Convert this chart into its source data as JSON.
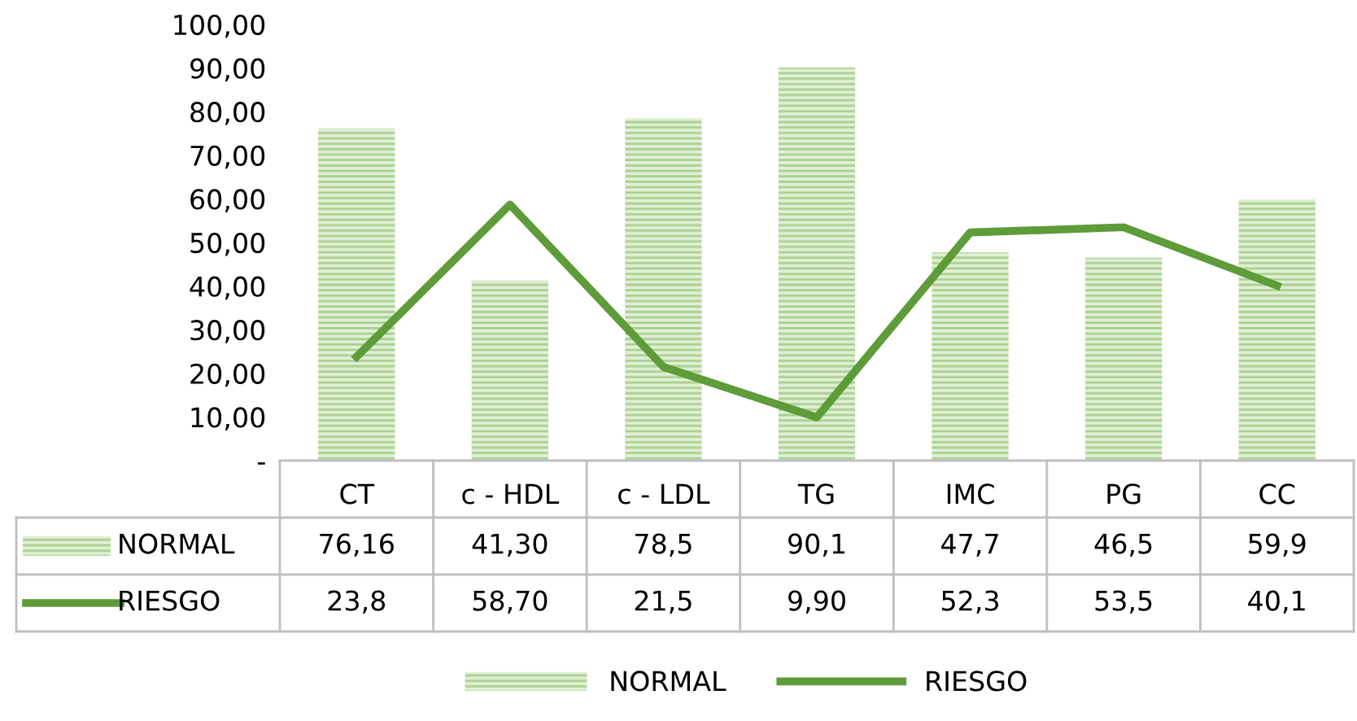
{
  "chart_data": {
    "type": "bar",
    "categories": [
      "CT",
      "c - HDL",
      "c - LDL",
      "TG",
      "IMC",
      "PG",
      "CC"
    ],
    "series": [
      {
        "name": "NORMAL",
        "color": "#a9d18e",
        "values": [
          76.16,
          41.3,
          78.5,
          90.1,
          47.7,
          46.5,
          59.9
        ],
        "value_labels": [
          "76,16",
          "41,30",
          "78,5",
          "90,1",
          "47,7",
          "46,5",
          "59,9"
        ]
      },
      {
        "name": "RIESGO",
        "type": "line",
        "color": "#5e9c3a",
        "values": [
          23.8,
          58.7,
          21.5,
          9.9,
          52.3,
          53.5,
          40.1
        ],
        "value_labels": [
          "23,8",
          "58,70",
          "21,5",
          "9,90",
          "52,3",
          "53,5",
          "40,1"
        ]
      }
    ],
    "ylim": [
      0,
      100
    ],
    "yticks": [
      {
        "value": 0,
        "label": "-"
      },
      {
        "value": 10,
        "label": "10,00"
      },
      {
        "value": 20,
        "label": "20,00"
      },
      {
        "value": 30,
        "label": "30,00"
      },
      {
        "value": 40,
        "label": "40,00"
      },
      {
        "value": 50,
        "label": "50,00"
      },
      {
        "value": 60,
        "label": "60,00"
      },
      {
        "value": 70,
        "label": "70,00"
      },
      {
        "value": 80,
        "label": "80,00"
      },
      {
        "value": 90,
        "label": "90,00"
      },
      {
        "value": 100,
        "label": "100,00"
      }
    ],
    "grid": false,
    "legend": "bottom",
    "marker": "none",
    "line_style": "solid"
  }
}
